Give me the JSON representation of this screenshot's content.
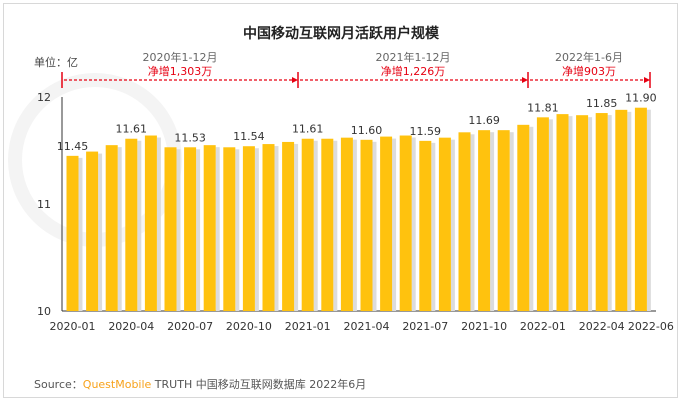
{
  "chart_data": {
    "type": "bar",
    "title": "中国移动互联网月活跃用户规模",
    "unit_label": "单位：亿",
    "categories": [
      "2020-01",
      "2020-02",
      "2020-03",
      "2020-04",
      "2020-05",
      "2020-06",
      "2020-07",
      "2020-08",
      "2020-09",
      "2020-10",
      "2020-11",
      "2020-12",
      "2021-01",
      "2021-02",
      "2021-03",
      "2021-04",
      "2021-05",
      "2021-06",
      "2021-07",
      "2021-08",
      "2021-09",
      "2021-10",
      "2021-11",
      "2021-12",
      "2022-01",
      "2022-02",
      "2022-03",
      "2022-04",
      "2022-05",
      "2022-06"
    ],
    "values": [
      11.45,
      11.49,
      11.55,
      11.61,
      11.64,
      11.53,
      11.53,
      11.55,
      11.53,
      11.54,
      11.56,
      11.58,
      11.61,
      11.61,
      11.62,
      11.6,
      11.63,
      11.64,
      11.59,
      11.62,
      11.67,
      11.69,
      11.69,
      11.74,
      11.81,
      11.84,
      11.83,
      11.85,
      11.88,
      11.9
    ],
    "data_labels": {
      "2020-01": "11.45",
      "2020-04": "11.61",
      "2020-07": "11.53",
      "2020-10": "11.54",
      "2021-01": "11.61",
      "2021-04": "11.60",
      "2021-07": "11.59",
      "2021-10": "11.69",
      "2022-01": "11.81",
      "2022-04": "11.85",
      "2022-06": "11.90"
    },
    "x_tick_labels": [
      "2020-01",
      "2020-04",
      "2020-07",
      "2020-10",
      "2021-01",
      "2021-04",
      "2021-07",
      "2021-10",
      "2022-01",
      "2022-04",
      "2022-06"
    ],
    "y_ticks": [
      "10",
      "11",
      "12"
    ],
    "ylim": [
      10,
      12
    ],
    "grid": false,
    "bar_color": "#ffc20e",
    "annotations": [
      {
        "period": "2020年1-12月",
        "text": "净增1,303万",
        "from": "2020-01",
        "to": "2020-12"
      },
      {
        "period": "2021年1-12月",
        "text": "净增1,226万",
        "from": "2021-01",
        "to": "2021-12"
      },
      {
        "period": "2022年1-6月",
        "text": "净增903万",
        "from": "2022-01",
        "to": "2022-06"
      }
    ],
    "annotation_color": "#e60012"
  },
  "source": {
    "prefix": "Source：",
    "brand": "QuestMobile",
    "rest": " TRUTH 中国移动互联网数据库 2022年6月"
  }
}
